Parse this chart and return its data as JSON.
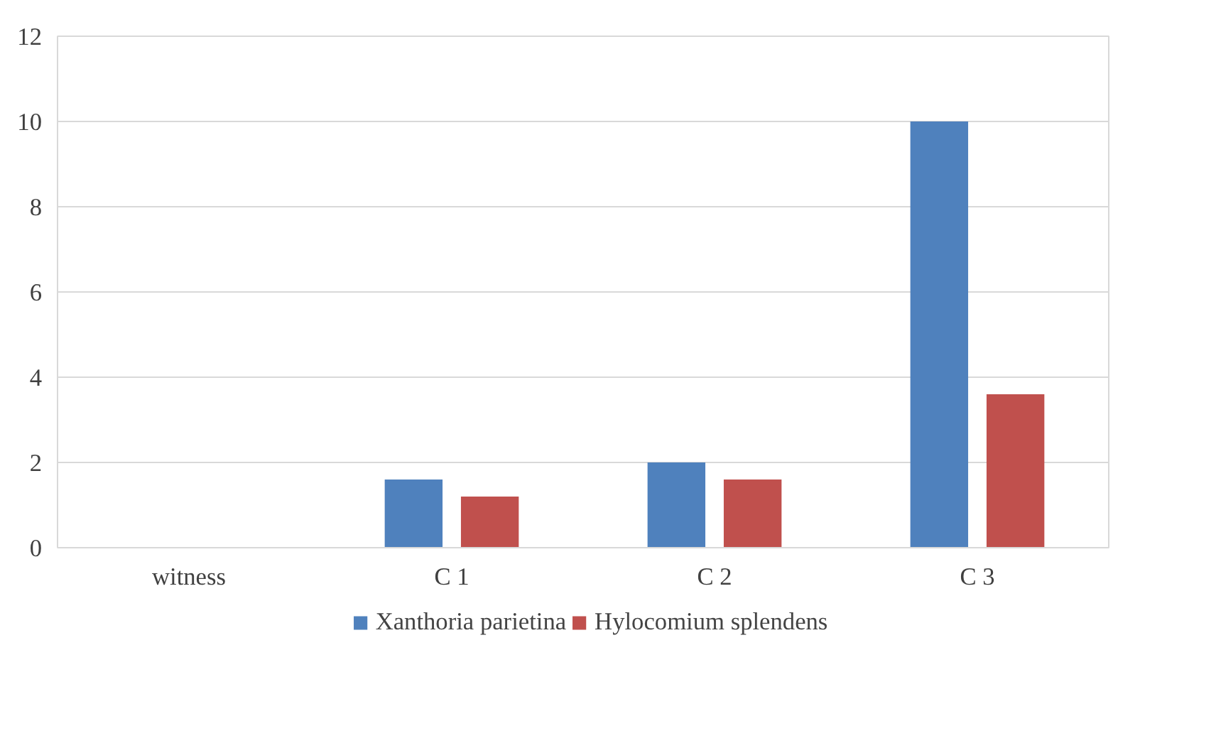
{
  "chart_data": {
    "type": "bar",
    "categories": [
      "witness",
      "C 1",
      "C 2",
      "C 3"
    ],
    "series": [
      {
        "name": "Xanthoria parietina",
        "color": "#4f81bd",
        "values": [
          0,
          1.6,
          2.0,
          10
        ]
      },
      {
        "name": "Hylocomium splendens",
        "color": "#c0504d",
        "values": [
          0,
          1.2,
          1.6,
          3.6
        ]
      }
    ],
    "ylim": [
      0,
      12
    ],
    "yticks": [
      0,
      2,
      4,
      6,
      8,
      10,
      12
    ],
    "grid": "y",
    "legend": "bottom"
  }
}
